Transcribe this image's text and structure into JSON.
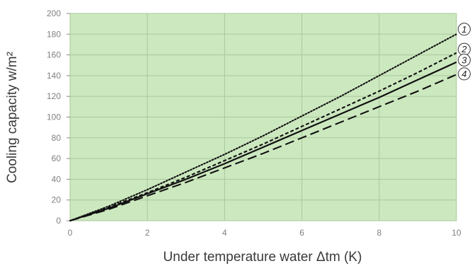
{
  "chart_data": {
    "type": "line",
    "xlabel": "Under temperature water Δtm (K)",
    "ylabel": "Cooling capacity w/m²",
    "xlim": [
      0,
      10
    ],
    "ylim": [
      0,
      200
    ],
    "x_ticks": [
      "0",
      "2",
      "4",
      "6",
      "8",
      "10"
    ],
    "y_ticks": [
      "0",
      "20",
      "40",
      "60",
      "80",
      "100",
      "120",
      "140",
      "160",
      "180",
      "200"
    ],
    "grid": true,
    "plot_background": "#cce8bf",
    "grid_color": "#a9c99a",
    "series": [
      {
        "name": "1",
        "style": "dotted",
        "x": [
          0,
          1,
          2,
          3,
          4,
          5,
          6,
          7,
          8,
          9,
          10
        ],
        "y": [
          0,
          14,
          30,
          47,
          64,
          82,
          101,
          120,
          140,
          160,
          180
        ]
      },
      {
        "name": "2",
        "style": "short-dashed",
        "x": [
          0,
          1,
          2,
          3,
          4,
          5,
          6,
          7,
          8,
          9,
          10
        ],
        "y": [
          0,
          13,
          27,
          42,
          58,
          74,
          91,
          108,
          125,
          143,
          162
        ]
      },
      {
        "name": "3",
        "style": "solid",
        "x": [
          0,
          1,
          2,
          3,
          4,
          5,
          6,
          7,
          8,
          9,
          10
        ],
        "y": [
          0,
          12,
          26,
          40,
          55,
          71,
          87,
          103,
          119,
          136,
          153
        ]
      },
      {
        "name": "4",
        "style": "long-dashed",
        "x": [
          0,
          1,
          2,
          3,
          4,
          5,
          6,
          7,
          8,
          9,
          10
        ],
        "y": [
          0,
          11,
          24,
          37,
          51,
          65,
          80,
          95,
          110,
          125,
          141
        ]
      }
    ]
  }
}
